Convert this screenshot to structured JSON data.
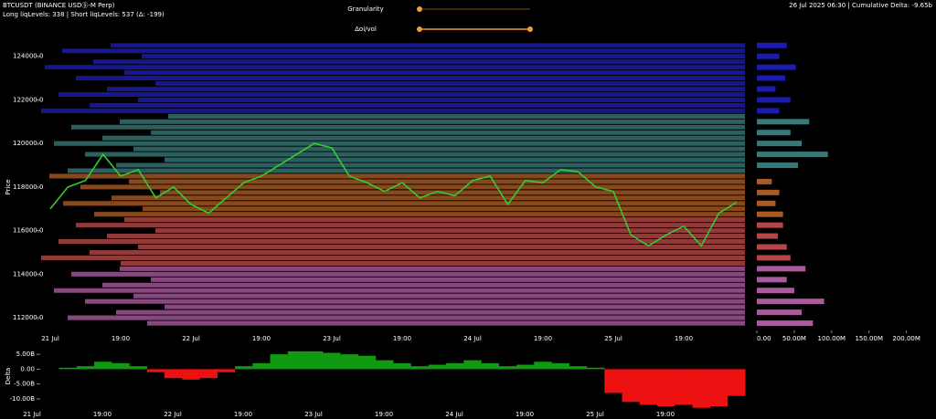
{
  "header": {
    "symbol": "BTCUSDT (BINANCE USDⓈ-M Perp)",
    "levels": "Long liqLevels: 338 | Short liqLevels: 537 (Δ: -199)",
    "status": "26 Jul 2025 06:30 | Cumulative Delta: -9.65b"
  },
  "controls": {
    "granularity": "Granularity",
    "oi_vol": "Δoi/vol"
  },
  "chart_data": [
    {
      "type": "line",
      "ylabel": "Price",
      "categories": [
        "21 Jul",
        null,
        null,
        null,
        "19:00",
        null,
        null,
        null,
        "22 Jul",
        null,
        null,
        null,
        "19:00",
        null,
        null,
        null,
        "23 Jul",
        null,
        null,
        null,
        "19:00",
        null,
        null,
        null,
        "24 Jul",
        null,
        null,
        null,
        "19:00",
        null,
        null,
        null,
        "25 Jul",
        null,
        null,
        null,
        "19:00",
        null,
        null,
        null,
        null
      ],
      "values": [
        117000,
        118000,
        118300,
        119500,
        118500,
        118800,
        117500,
        118000,
        117200,
        116800,
        117500,
        118200,
        118500,
        119000,
        119500,
        120000,
        119800,
        118500,
        118200,
        117800,
        118200,
        117500,
        117800,
        117600,
        118300,
        118500,
        117200,
        118300,
        118200,
        118800,
        118700,
        118000,
        117800,
        115800,
        115300,
        115800,
        116200,
        115300,
        116800,
        117300,
        null
      ],
      "color": "#33cc33",
      "ylim": [
        111500,
        124700
      ],
      "yticks": [
        {
          "value": 112000,
          "label": "112000.0"
        },
        {
          "value": 114000,
          "label": "114000.0"
        },
        {
          "value": 116000,
          "label": "116000.0"
        },
        {
          "value": 118000,
          "label": "118000.0"
        },
        {
          "value": 120000,
          "label": "120000.0"
        },
        {
          "value": 122000,
          "label": "122000.0"
        },
        {
          "value": 124000,
          "label": "124000.0"
        }
      ],
      "levels": [
        {
          "color": "#2424ee",
          "values": [
            121500,
            121750,
            122000,
            122250,
            122500,
            122750,
            123000,
            123250,
            123500,
            123750,
            124000,
            124250,
            124500
          ]
        },
        {
          "color": "#4aa0a0",
          "values": [
            118750,
            119000,
            119250,
            119500,
            119750,
            120000,
            120250,
            120500,
            120750,
            121000,
            121250
          ]
        },
        {
          "color": "#e07a30",
          "values": [
            116750,
            117000,
            117250,
            117500,
            117750,
            118000,
            118250,
            118500
          ]
        },
        {
          "color": "#f06060",
          "values": [
            114500,
            114750,
            115000,
            115250,
            115500,
            115750,
            116000,
            116250,
            116500
          ]
        },
        {
          "color": "#e07ad0",
          "values": [
            111750,
            112000,
            112250,
            112500,
            112750,
            113000,
            113250,
            113500,
            113750,
            114000,
            114250
          ]
        }
      ]
    },
    {
      "type": "barh",
      "xlim": [
        0,
        220000000
      ],
      "xticks": [
        {
          "value": 0,
          "label": "0.00"
        },
        {
          "value": 50000000,
          "label": "50.00M"
        },
        {
          "value": 100000000,
          "label": "100.00M"
        },
        {
          "value": 150000000,
          "label": "150.00M"
        },
        {
          "value": 200000000,
          "label": "200.00M"
        }
      ],
      "ylim": [
        111500,
        124700
      ],
      "series": [
        {
          "color": "#2424ee",
          "y": [
            121500,
            122000,
            122500,
            123000,
            123500,
            124000,
            124500
          ],
          "values": [
            30000000,
            45000000,
            25000000,
            38000000,
            52000000,
            30000000,
            40000000
          ]
        },
        {
          "color": "#4aa0a0",
          "y": [
            119000,
            119500,
            120000,
            120500,
            121000
          ],
          "values": [
            55000000,
            95000000,
            60000000,
            45000000,
            70000000
          ]
        },
        {
          "color": "#e07a30",
          "y": [
            116750,
            117250,
            117750,
            118250
          ],
          "values": [
            35000000,
            25000000,
            30000000,
            20000000
          ]
        },
        {
          "color": "#f06060",
          "y": [
            114750,
            115250,
            115750,
            116250
          ],
          "values": [
            45000000,
            40000000,
            28000000,
            35000000
          ]
        },
        {
          "color": "#e07ad0",
          "y": [
            111750,
            112250,
            112750,
            113250,
            113750,
            114250
          ],
          "values": [
            75000000,
            60000000,
            90000000,
            50000000,
            40000000,
            65000000
          ]
        }
      ]
    },
    {
      "type": "delta",
      "ylabel": "Delta",
      "categories": [
        "21 Jul",
        null,
        null,
        null,
        "19:00",
        null,
        null,
        null,
        "22 Jul",
        null,
        null,
        null,
        "19:00",
        null,
        null,
        null,
        "23 Jul",
        null,
        null,
        null,
        "19:00",
        null,
        null,
        null,
        "24 Jul",
        null,
        null,
        null,
        "19:00",
        null,
        null,
        null,
        "25 Jul",
        null,
        null,
        null,
        "19:00",
        null,
        null,
        null,
        null
      ],
      "values": [
        0,
        0.5,
        1,
        2.5,
        2,
        1,
        -1,
        -3,
        -3.5,
        -3,
        -1,
        1,
        2,
        5,
        6,
        6,
        5.5,
        5,
        4.5,
        3,
        2,
        1,
        1.5,
        2,
        3,
        2,
        1,
        1.5,
        2.5,
        2,
        1,
        0.5,
        -8,
        -11,
        -12,
        -12.5,
        -12,
        -13,
        -12.5,
        -9,
        null
      ],
      "pos_color": "#119911",
      "neg_color": "#ee1111",
      "ylim": [
        -14,
        7.5
      ],
      "yticks": [
        {
          "value": 5,
          "label": "5.00B"
        },
        {
          "value": 0,
          "label": "0.00"
        },
        {
          "value": -5,
          "label": "-5.00B"
        },
        {
          "value": -10,
          "label": "-10.00B"
        }
      ]
    }
  ]
}
